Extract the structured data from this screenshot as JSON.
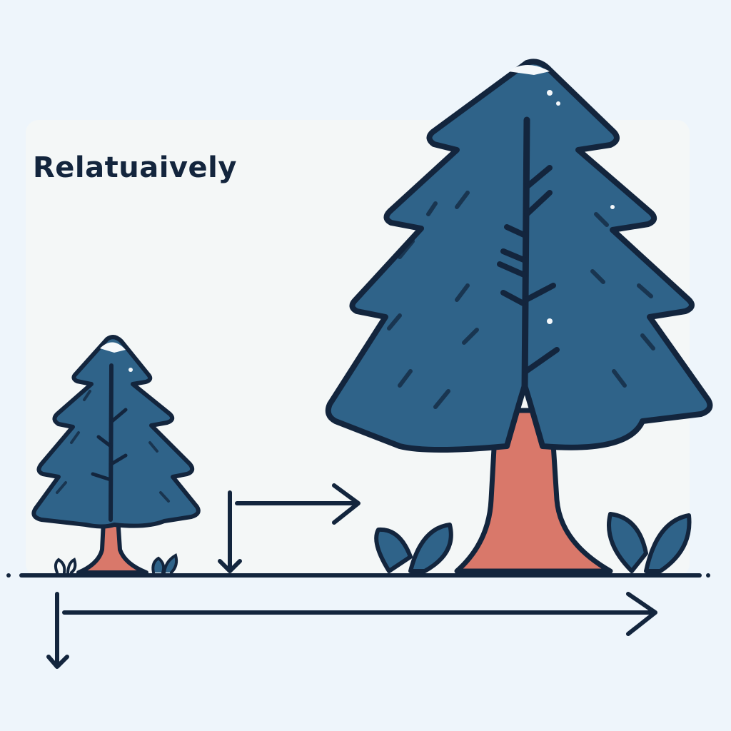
{
  "label": {
    "title": "Relatuaively"
  },
  "colors": {
    "background": "#eef5fb",
    "foliage": "#2f6389",
    "outline": "#13253d",
    "trunk": "#d9786a",
    "ground": "#13253d"
  },
  "icons": [
    "small-tree-icon",
    "large-tree-icon",
    "bush-icon",
    "arrow-icon"
  ]
}
